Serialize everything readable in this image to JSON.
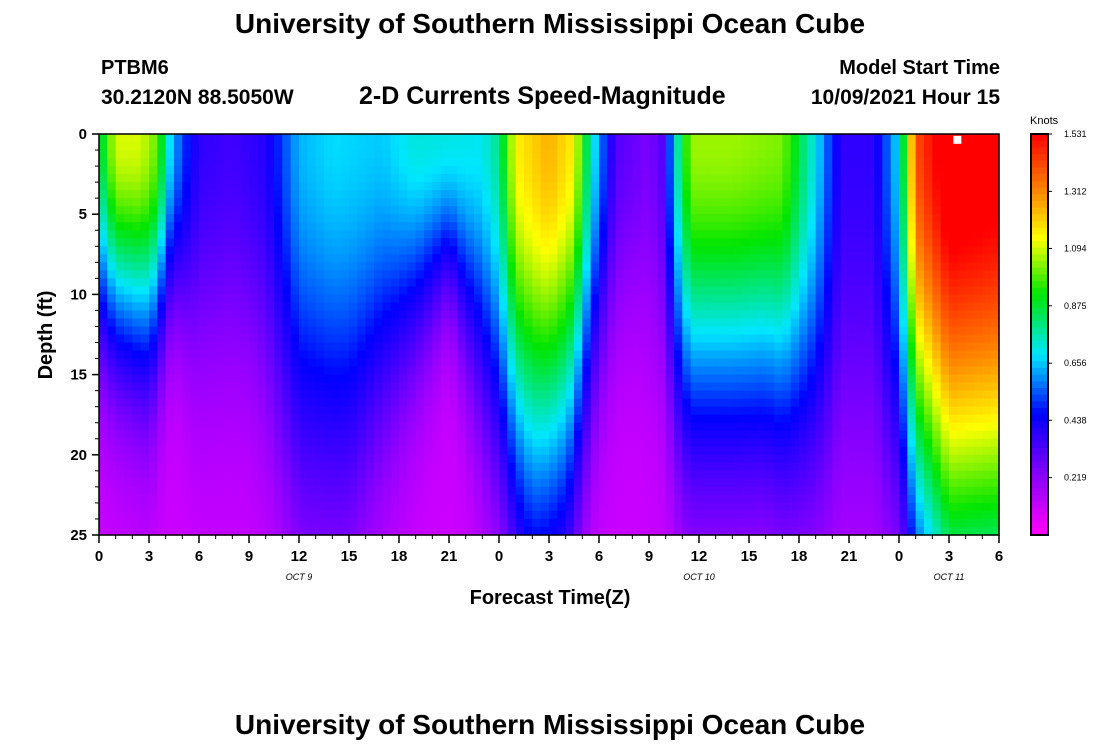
{
  "header": {
    "title": "University of Southern Mississippi Ocean Cube",
    "station": "PTBM6",
    "coordinates": "30.2120N  88.5050W",
    "subtitle": "2-D Currents Speed-Magnitude",
    "model_start_label": "Model Start Time",
    "model_start_value": "10/09/2021 Hour 15"
  },
  "footer": {
    "title": "University of Southern Mississippi Ocean Cube"
  },
  "chart_data": {
    "type": "heatmap",
    "title": "2-D Currents Speed-Magnitude",
    "xlabel": "Forecast Time(Z)",
    "ylabel": "Depth (ft)",
    "x_tick_labels": [
      "0",
      "3",
      "6",
      "9",
      "12",
      "15",
      "18",
      "21",
      "0",
      "3",
      "6",
      "9",
      "12",
      "15",
      "18",
      "21",
      "0",
      "3",
      "6"
    ],
    "x_range_hours": [
      0,
      54
    ],
    "y_ticks": [
      0,
      5,
      10,
      15,
      20,
      25
    ],
    "y_range_ft": [
      0,
      25
    ],
    "y_inverted": true,
    "day_labels": [
      {
        "label": "OCT 9",
        "hour": 12
      },
      {
        "label": "OCT 10",
        "hour": 36
      },
      {
        "label": "OCT 11",
        "hour": 51
      }
    ],
    "colorbar": {
      "unit": "Knots",
      "range": [
        0,
        1.531
      ],
      "ticks": [
        1.531,
        1.312,
        1.094,
        0.875,
        0.656,
        0.438,
        0.219
      ]
    },
    "surface_profile_knots": [
      [
        0,
        0.72
      ],
      [
        1,
        1.0
      ],
      [
        2.5,
        1.0
      ],
      [
        3.5,
        0.9
      ],
      [
        4.2,
        0.6
      ],
      [
        5,
        0.42
      ],
      [
        6,
        0.28
      ],
      [
        8,
        0.25
      ],
      [
        10,
        0.3
      ],
      [
        11,
        0.42
      ],
      [
        12,
        0.54
      ],
      [
        14,
        0.58
      ],
      [
        17,
        0.56
      ],
      [
        19,
        0.62
      ],
      [
        23,
        0.6
      ],
      [
        24,
        0.7
      ],
      [
        25,
        1.05
      ],
      [
        27,
        1.15
      ],
      [
        28.5,
        1.05
      ],
      [
        29.5,
        0.65
      ],
      [
        30.3,
        0.42
      ],
      [
        31,
        0.22
      ],
      [
        33,
        0.15
      ],
      [
        33.8,
        0.22
      ],
      [
        34.8,
        0.7
      ],
      [
        35.5,
        0.95
      ],
      [
        38,
        0.95
      ],
      [
        41,
        0.92
      ],
      [
        43,
        0.6
      ],
      [
        44.5,
        0.28
      ],
      [
        46.5,
        0.28
      ],
      [
        48,
        0.6
      ],
      [
        49,
        1.3
      ],
      [
        51,
        1.52
      ],
      [
        54,
        1.48
      ]
    ],
    "depth_decay_ft": [
      [
        0,
        12
      ],
      [
        3,
        14
      ],
      [
        4.5,
        10
      ],
      [
        6,
        15
      ],
      [
        9,
        15
      ],
      [
        12,
        22
      ],
      [
        15,
        22
      ],
      [
        18,
        15
      ],
      [
        21,
        9
      ],
      [
        23.5,
        18
      ],
      [
        26,
        24
      ],
      [
        28,
        22
      ],
      [
        30,
        14
      ],
      [
        32,
        12
      ],
      [
        35,
        18
      ],
      [
        40,
        18
      ],
      [
        45,
        22
      ],
      [
        48,
        22
      ],
      [
        51,
        30
      ],
      [
        54,
        30
      ]
    ],
    "marker": {
      "hour": 51.5,
      "depth_ft": 0.3
    }
  }
}
